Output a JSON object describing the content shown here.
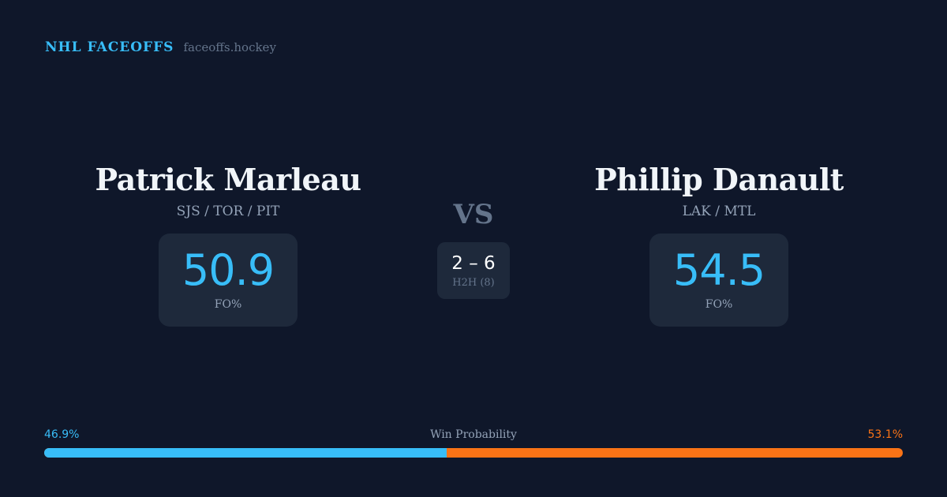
{
  "brand": {
    "title": "NHL FACEOFFS",
    "url": "faceoffs.hockey"
  },
  "left": {
    "name": "Patrick Marleau",
    "teams": "SJS / TOR / PIT",
    "fo": "50.9",
    "fo_label": "FO%"
  },
  "right": {
    "name": "Phillip Danault",
    "teams": "LAK / MTL",
    "fo": "54.5",
    "fo_label": "FO%"
  },
  "vs": "VS",
  "h2h": {
    "score": "2 – 6",
    "label": "H2H (8)"
  },
  "probability": {
    "label": "Win Probability",
    "left": "46.9%",
    "right": "53.1%",
    "left_value": 46.9,
    "left_color": "#38bdf8",
    "right_color": "#f97316"
  }
}
